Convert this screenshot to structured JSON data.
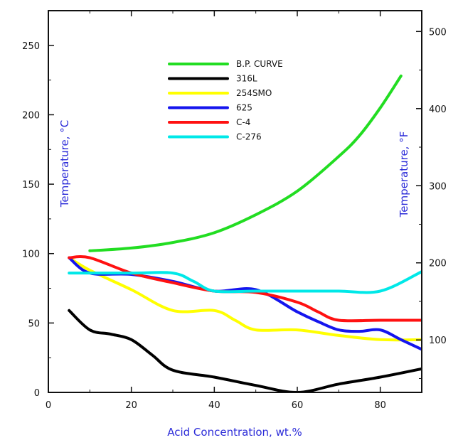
{
  "chart_data": {
    "type": "line",
    "title": "",
    "xlabel": "Acid Concentration, wt.%",
    "ylabel": "Temperature, °C",
    "ylabel_right": "Temperature, °F",
    "xlim": [
      0,
      90
    ],
    "ylim": [
      0,
      275
    ],
    "xticks": [
      "0",
      "20",
      "40",
      "60",
      "80"
    ],
    "yticks": [
      "0",
      "50",
      "100",
      "150",
      "200",
      "250"
    ],
    "yticks_right": [
      "100",
      "200",
      "300",
      "400",
      "500"
    ],
    "grid": false,
    "legend_position": "top-center",
    "series": [
      {
        "name": "B.P. CURVE",
        "color": "#22dd22",
        "x": [
          10,
          20,
          30,
          40,
          50,
          60,
          70,
          75,
          80,
          85
        ],
        "y": [
          102,
          104,
          108,
          115,
          128,
          145,
          170,
          185,
          205,
          228
        ]
      },
      {
        "name": "316L",
        "color": "#000000",
        "x": [
          5,
          10,
          15,
          20,
          25,
          30,
          40,
          50,
          60,
          70,
          80,
          90
        ],
        "y": [
          59,
          45,
          42,
          38,
          27,
          16,
          11,
          5,
          0,
          6,
          11,
          17
        ]
      },
      {
        "name": "254SMO",
        "color": "#ffff00",
        "x": [
          5,
          10,
          20,
          30,
          40,
          45,
          50,
          60,
          70,
          80,
          90
        ],
        "y": [
          97,
          88,
          74,
          59,
          59,
          52,
          45,
          45,
          41,
          38,
          38
        ]
      },
      {
        "name": "625",
        "color": "#1515ee",
        "x": [
          5,
          10,
          20,
          30,
          40,
          50,
          60,
          65,
          70,
          75,
          80,
          85,
          90
        ],
        "y": [
          97,
          86,
          85,
          80,
          73,
          74,
          58,
          51,
          45,
          44,
          45,
          38,
          31
        ]
      },
      {
        "name": "C-4",
        "color": "#ff1111",
        "x": [
          5,
          10,
          20,
          30,
          40,
          50,
          60,
          65,
          70,
          80,
          90
        ],
        "y": [
          97,
          97,
          86,
          79,
          73,
          72,
          65,
          58,
          52,
          52,
          52
        ]
      },
      {
        "name": "C-276",
        "color": "#00e8e8",
        "x": [
          5,
          20,
          30,
          35,
          40,
          50,
          60,
          70,
          80,
          90
        ],
        "y": [
          86,
          86,
          86,
          80,
          73,
          73,
          73,
          73,
          73,
          87
        ]
      }
    ]
  }
}
